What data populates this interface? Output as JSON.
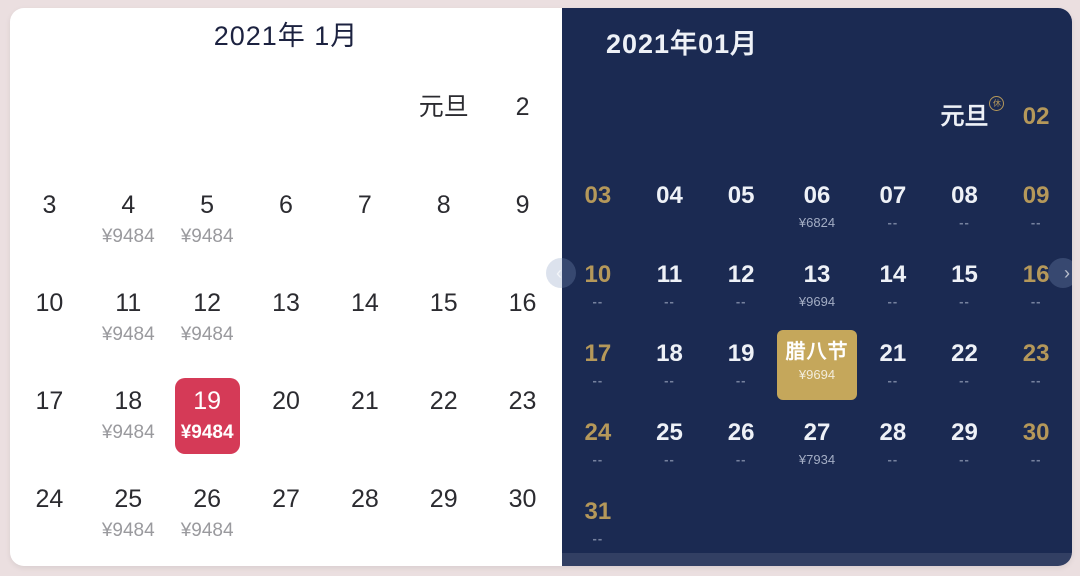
{
  "left_calendar": {
    "title": "2021年 1月",
    "cells": [
      {
        "row": 0,
        "col": 5,
        "day": "元旦"
      },
      {
        "row": 0,
        "col": 6,
        "day": "2"
      },
      {
        "row": 1,
        "col": 0,
        "day": "3"
      },
      {
        "row": 1,
        "col": 1,
        "day": "4",
        "price": "¥9484"
      },
      {
        "row": 1,
        "col": 2,
        "day": "5",
        "price": "¥9484"
      },
      {
        "row": 1,
        "col": 3,
        "day": "6"
      },
      {
        "row": 1,
        "col": 4,
        "day": "7"
      },
      {
        "row": 1,
        "col": 5,
        "day": "8"
      },
      {
        "row": 1,
        "col": 6,
        "day": "9"
      },
      {
        "row": 2,
        "col": 0,
        "day": "10"
      },
      {
        "row": 2,
        "col": 1,
        "day": "11",
        "price": "¥9484"
      },
      {
        "row": 2,
        "col": 2,
        "day": "12",
        "price": "¥9484"
      },
      {
        "row": 2,
        "col": 3,
        "day": "13"
      },
      {
        "row": 2,
        "col": 4,
        "day": "14"
      },
      {
        "row": 2,
        "col": 5,
        "day": "15"
      },
      {
        "row": 2,
        "col": 6,
        "day": "16"
      },
      {
        "row": 3,
        "col": 0,
        "day": "17"
      },
      {
        "row": 3,
        "col": 1,
        "day": "18",
        "price": "¥9484"
      },
      {
        "row": 3,
        "col": 2,
        "day": "19",
        "price": "¥9484",
        "selected": true
      },
      {
        "row": 3,
        "col": 3,
        "day": "20"
      },
      {
        "row": 3,
        "col": 4,
        "day": "21"
      },
      {
        "row": 3,
        "col": 5,
        "day": "22"
      },
      {
        "row": 3,
        "col": 6,
        "day": "23"
      },
      {
        "row": 4,
        "col": 0,
        "day": "24"
      },
      {
        "row": 4,
        "col": 1,
        "day": "25",
        "price": "¥9484"
      },
      {
        "row": 4,
        "col": 2,
        "day": "26",
        "price": "¥9484"
      },
      {
        "row": 4,
        "col": 3,
        "day": "27"
      },
      {
        "row": 4,
        "col": 4,
        "day": "28"
      },
      {
        "row": 4,
        "col": 5,
        "day": "29"
      },
      {
        "row": 4,
        "col": 6,
        "day": "30"
      }
    ]
  },
  "right_calendar": {
    "title": "2021年01月",
    "dash_glyph": "--",
    "nav": {
      "prev_glyph": "‹",
      "next_glyph": "›"
    },
    "cells": [
      {
        "row": 0,
        "col": 5,
        "day": "元旦",
        "badge": "休"
      },
      {
        "row": 0,
        "col": 6,
        "day": "02",
        "gold": true
      },
      {
        "row": 1,
        "col": 0,
        "day": "03",
        "gold": true
      },
      {
        "row": 1,
        "col": 1,
        "day": "04"
      },
      {
        "row": 1,
        "col": 2,
        "day": "05"
      },
      {
        "row": 1,
        "col": 3,
        "day": "06",
        "price": "¥6824"
      },
      {
        "row": 1,
        "col": 4,
        "day": "07",
        "dash": true
      },
      {
        "row": 1,
        "col": 5,
        "day": "08",
        "dash": true
      },
      {
        "row": 1,
        "col": 6,
        "day": "09",
        "gold": true,
        "dash": true
      },
      {
        "row": 2,
        "col": 0,
        "day": "10",
        "gold": true,
        "dash": true
      },
      {
        "row": 2,
        "col": 1,
        "day": "11",
        "dash": true
      },
      {
        "row": 2,
        "col": 2,
        "day": "12",
        "dash": true
      },
      {
        "row": 2,
        "col": 3,
        "day": "13",
        "price": "¥9694"
      },
      {
        "row": 2,
        "col": 4,
        "day": "14",
        "dash": true
      },
      {
        "row": 2,
        "col": 5,
        "day": "15",
        "dash": true
      },
      {
        "row": 2,
        "col": 6,
        "day": "16",
        "gold": true,
        "dash": true
      },
      {
        "row": 3,
        "col": 0,
        "day": "17",
        "gold": true,
        "dash": true
      },
      {
        "row": 3,
        "col": 1,
        "day": "18",
        "dash": true
      },
      {
        "row": 3,
        "col": 2,
        "day": "19",
        "dash": true
      },
      {
        "row": 3,
        "col": 3,
        "day": "腊八节",
        "price": "¥9694",
        "festival": true
      },
      {
        "row": 3,
        "col": 4,
        "day": "21",
        "dash": true
      },
      {
        "row": 3,
        "col": 5,
        "day": "22",
        "dash": true
      },
      {
        "row": 3,
        "col": 6,
        "day": "23",
        "gold": true,
        "dash": true
      },
      {
        "row": 4,
        "col": 0,
        "day": "24",
        "gold": true,
        "dash": true
      },
      {
        "row": 4,
        "col": 1,
        "day": "25",
        "dash": true
      },
      {
        "row": 4,
        "col": 2,
        "day": "26",
        "dash": true
      },
      {
        "row": 4,
        "col": 3,
        "day": "27",
        "price": "¥7934"
      },
      {
        "row": 4,
        "col": 4,
        "day": "28",
        "dash": true
      },
      {
        "row": 4,
        "col": 5,
        "day": "29",
        "dash": true
      },
      {
        "row": 4,
        "col": 6,
        "day": "30",
        "gold": true,
        "dash": true
      },
      {
        "row": 5,
        "col": 0,
        "day": "31",
        "gold": true,
        "dash": true
      }
    ]
  },
  "colors": {
    "left_selected_bg": "#d53a57",
    "right_bg": "#1b2a52",
    "gold": "#b5985a",
    "festival_bg": "#c5a75b"
  }
}
